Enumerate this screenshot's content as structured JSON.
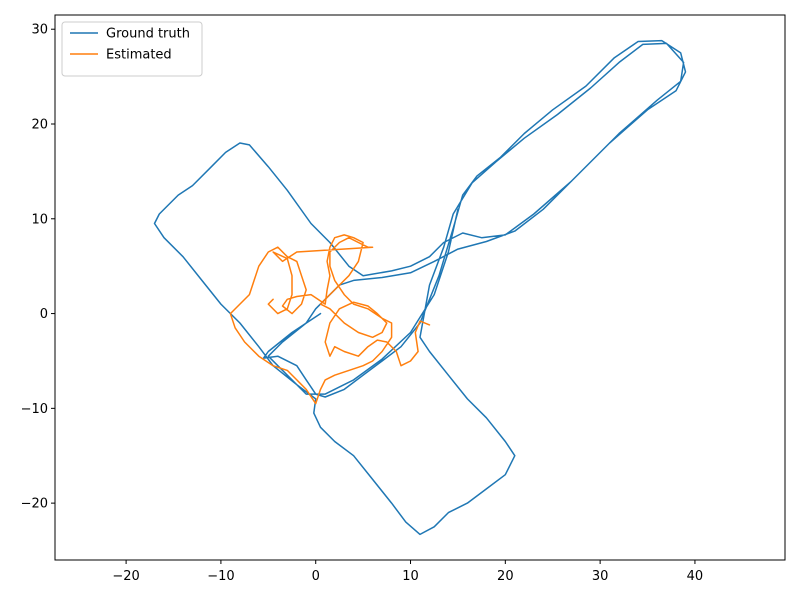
{
  "chart_data": {
    "type": "line",
    "title": "",
    "xlabel": "",
    "ylabel": "",
    "xlim": [
      -27.5,
      49.5
    ],
    "ylim": [
      -26,
      31.5
    ],
    "xticks": [
      -20,
      -10,
      0,
      10,
      20,
      30,
      40
    ],
    "yticks": [
      -20,
      -10,
      0,
      10,
      20,
      30
    ],
    "grid": false,
    "legend": "top-left",
    "series": [
      {
        "name": "Ground truth",
        "color": "#1f77b4",
        "points": [
          [
            0.5,
            0.0
          ],
          [
            -2.5,
            -2.0
          ],
          [
            -5.0,
            -4.0
          ],
          [
            -5.5,
            -4.7
          ],
          [
            -4.0,
            -4.5
          ],
          [
            -2.0,
            -5.5
          ],
          [
            -1.0,
            -7.0
          ],
          [
            0.0,
            -8.5
          ],
          [
            1.0,
            -8.8
          ],
          [
            3.0,
            -8.0
          ],
          [
            5.0,
            -6.5
          ],
          [
            7.0,
            -5.0
          ],
          [
            9.0,
            -3.5
          ],
          [
            11.0,
            -1.0
          ],
          [
            13.0,
            4.0
          ],
          [
            14.5,
            9.0
          ],
          [
            15.5,
            12.5
          ],
          [
            17.0,
            14.5
          ],
          [
            19.5,
            16.5
          ],
          [
            22.0,
            19.0
          ],
          [
            25.0,
            21.5
          ],
          [
            28.5,
            24.0
          ],
          [
            31.5,
            27.0
          ],
          [
            34.0,
            28.7
          ],
          [
            36.5,
            28.8
          ],
          [
            38.5,
            27.5
          ],
          [
            39.0,
            25.5
          ],
          [
            38.0,
            23.5
          ],
          [
            35.0,
            21.5
          ],
          [
            31.0,
            18.0
          ],
          [
            27.0,
            14.0
          ],
          [
            23.0,
            10.5
          ],
          [
            20.0,
            8.3
          ],
          [
            17.5,
            8.0
          ],
          [
            15.5,
            8.5
          ],
          [
            13.5,
            7.5
          ],
          [
            12.0,
            6.0
          ],
          [
            10.0,
            5.0
          ],
          [
            8.0,
            4.5
          ],
          [
            5.0,
            4.0
          ],
          [
            3.5,
            5.0
          ],
          [
            1.5,
            7.5
          ],
          [
            -0.5,
            9.5
          ],
          [
            -3.0,
            13.0
          ],
          [
            -5.0,
            15.5
          ],
          [
            -7.0,
            17.8
          ],
          [
            -8.0,
            18.0
          ],
          [
            -9.5,
            17.0
          ],
          [
            -11.0,
            15.5
          ],
          [
            -13.0,
            13.5
          ],
          [
            -14.5,
            12.5
          ],
          [
            -16.5,
            10.5
          ],
          [
            -17.0,
            9.5
          ],
          [
            -16.0,
            8.0
          ],
          [
            -14.0,
            6.0
          ],
          [
            -12.0,
            3.5
          ],
          [
            -10.0,
            1.0
          ],
          [
            -8.0,
            -1.0
          ],
          [
            -6.0,
            -3.5
          ],
          [
            -4.5,
            -5.5
          ],
          [
            -2.0,
            -7.5
          ],
          [
            0.0,
            -9.0
          ],
          [
            -0.2,
            -10.5
          ],
          [
            0.5,
            -12.0
          ],
          [
            2.0,
            -13.5
          ],
          [
            4.0,
            -15.0
          ],
          [
            6.0,
            -17.5
          ],
          [
            8.0,
            -20.0
          ],
          [
            9.5,
            -22.0
          ],
          [
            11.0,
            -23.3
          ],
          [
            12.5,
            -22.5
          ],
          [
            14.0,
            -21.0
          ],
          [
            16.0,
            -20.0
          ],
          [
            18.0,
            -18.5
          ],
          [
            20.0,
            -17.0
          ],
          [
            21.0,
            -15.0
          ],
          [
            20.0,
            -13.5
          ],
          [
            18.0,
            -11.0
          ],
          [
            16.0,
            -9.0
          ],
          [
            14.0,
            -6.5
          ],
          [
            12.0,
            -4.0
          ],
          [
            11.0,
            -2.5
          ],
          [
            12.0,
            3.0
          ],
          [
            13.5,
            7.0
          ],
          [
            14.5,
            10.5
          ],
          [
            16.5,
            13.8
          ],
          [
            19.0,
            16.0
          ],
          [
            22.0,
            18.5
          ],
          [
            25.5,
            21.0
          ],
          [
            29.0,
            23.8
          ],
          [
            32.0,
            26.5
          ],
          [
            34.5,
            28.4
          ],
          [
            37.0,
            28.5
          ],
          [
            38.8,
            26.5
          ],
          [
            38.5,
            24.5
          ],
          [
            36.0,
            22.5
          ],
          [
            32.0,
            19.0
          ],
          [
            28.0,
            15.0
          ],
          [
            24.0,
            11.0
          ],
          [
            21.0,
            8.7
          ],
          [
            18.0,
            7.6
          ],
          [
            15.0,
            6.8
          ],
          [
            12.5,
            5.5
          ],
          [
            10.0,
            4.3
          ],
          [
            7.0,
            3.8
          ],
          [
            4.0,
            3.5
          ],
          [
            2.5,
            3.0
          ],
          [
            1.0,
            1.5
          ],
          [
            0.0,
            0.5
          ],
          [
            -1.0,
            -1.0
          ],
          [
            -3.5,
            -3.0
          ],
          [
            -5.0,
            -4.5
          ],
          [
            -3.0,
            -6.5
          ],
          [
            -1.0,
            -8.5
          ],
          [
            1.0,
            -8.5
          ],
          [
            4.0,
            -7.0
          ],
          [
            7.0,
            -4.8
          ],
          [
            10.0,
            -2.0
          ],
          [
            12.5,
            2.0
          ],
          [
            14.0,
            6.5
          ],
          [
            15.0,
            11.0
          ]
        ]
      },
      {
        "name": "Estimated",
        "color": "#ff7f0e",
        "points": [
          [
            12.0,
            -1.2
          ],
          [
            11.0,
            -0.8
          ],
          [
            10.5,
            -2.0
          ],
          [
            10.8,
            -4.0
          ],
          [
            10.0,
            -5.0
          ],
          [
            9.0,
            -5.5
          ],
          [
            8.5,
            -4.0
          ],
          [
            7.5,
            -3.0
          ],
          [
            6.5,
            -2.8
          ],
          [
            5.5,
            -3.5
          ],
          [
            4.5,
            -4.5
          ],
          [
            3.0,
            -4.0
          ],
          [
            2.0,
            -3.5
          ],
          [
            1.5,
            -4.5
          ],
          [
            1.0,
            -3.0
          ],
          [
            1.5,
            -1.0
          ],
          [
            2.5,
            0.5
          ],
          [
            4.0,
            1.2
          ],
          [
            5.5,
            0.8
          ],
          [
            6.5,
            0.0
          ],
          [
            7.5,
            -1.0
          ],
          [
            7.0,
            -2.0
          ],
          [
            6.0,
            -2.5
          ],
          [
            4.5,
            -2.0
          ],
          [
            3.0,
            -1.0
          ],
          [
            1.5,
            0.5
          ],
          [
            0.5,
            1.0
          ],
          [
            1.5,
            2.0
          ],
          [
            2.5,
            3.0
          ],
          [
            3.5,
            4.0
          ],
          [
            4.5,
            5.5
          ],
          [
            5.0,
            7.5
          ],
          [
            4.0,
            8.0
          ],
          [
            3.0,
            8.3
          ],
          [
            2.0,
            8.0
          ],
          [
            1.5,
            7.0
          ],
          [
            1.2,
            5.5
          ],
          [
            1.5,
            4.0
          ],
          [
            1.2,
            2.5
          ],
          [
            1.0,
            1.0
          ],
          [
            -0.5,
            2.0
          ],
          [
            -2.0,
            1.8
          ],
          [
            -3.0,
            1.5
          ],
          [
            -3.5,
            0.8
          ],
          [
            -2.5,
            0.0
          ],
          [
            -1.5,
            1.0
          ],
          [
            -1.0,
            2.5
          ],
          [
            -1.5,
            4.0
          ],
          [
            -2.0,
            5.5
          ],
          [
            -3.0,
            6.0
          ],
          [
            -4.0,
            7.0
          ],
          [
            -5.0,
            6.5
          ],
          [
            -6.0,
            5.0
          ],
          [
            -6.5,
            3.5
          ],
          [
            -7.0,
            2.0
          ],
          [
            -8.0,
            1.0
          ],
          [
            -9.0,
            0.0
          ],
          [
            -8.5,
            -1.5
          ],
          [
            -7.5,
            -3.0
          ],
          [
            -6.0,
            -4.5
          ],
          [
            -4.5,
            -5.5
          ],
          [
            -3.0,
            -6.0
          ],
          [
            -2.0,
            -7.0
          ],
          [
            -1.0,
            -8.0
          ],
          [
            0.0,
            -9.5
          ],
          [
            0.5,
            -8.0
          ],
          [
            1.0,
            -7.0
          ],
          [
            2.0,
            -6.5
          ],
          [
            3.5,
            -6.0
          ],
          [
            5.0,
            -5.5
          ],
          [
            6.0,
            -5.0
          ],
          [
            7.0,
            -4.0
          ],
          [
            8.0,
            -2.5
          ],
          [
            8.0,
            -1.0
          ],
          [
            7.0,
            -0.5
          ],
          [
            5.5,
            0.5
          ],
          [
            4.0,
            1.0
          ],
          [
            3.0,
            2.0
          ],
          [
            2.0,
            3.5
          ],
          [
            1.5,
            5.0
          ],
          [
            1.5,
            6.5
          ],
          [
            2.5,
            7.5
          ],
          [
            3.5,
            8.0
          ],
          [
            4.5,
            7.5
          ],
          [
            5.5,
            7.0
          ],
          [
            6.0,
            7.0
          ],
          [
            -2.0,
            6.5
          ],
          [
            -3.5,
            5.5
          ],
          [
            -4.5,
            6.5
          ],
          [
            -3.0,
            5.8
          ],
          [
            -2.5,
            4.0
          ],
          [
            -2.5,
            2.0
          ],
          [
            -3.0,
            0.5
          ],
          [
            -4.0,
            0.0
          ],
          [
            -5.0,
            1.0
          ],
          [
            -4.5,
            1.5
          ]
        ]
      }
    ]
  }
}
